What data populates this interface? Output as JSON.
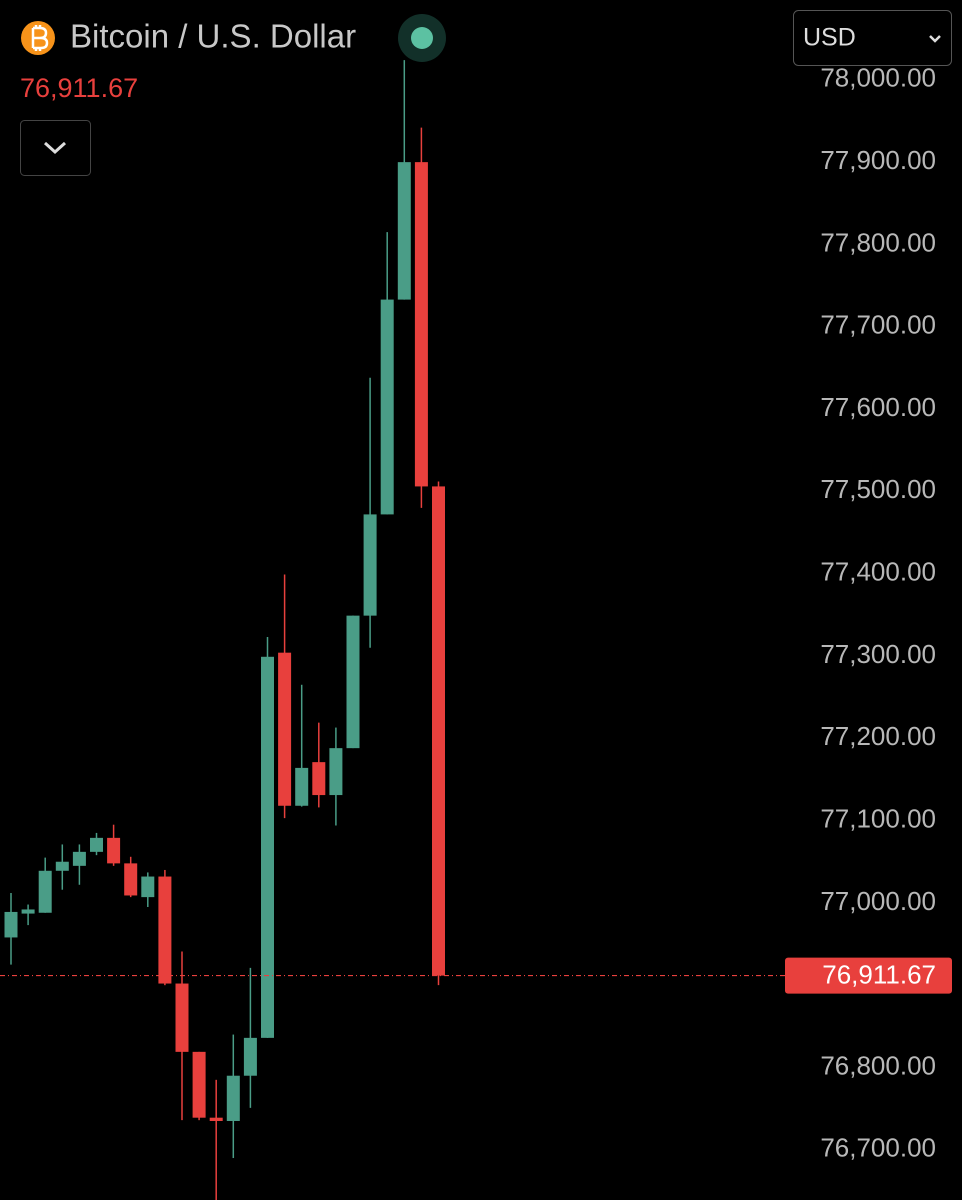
{
  "chart_data": {
    "type": "candlestick",
    "title": "Bitcoin / U.S. Dollar",
    "currency": "USD",
    "last_price": {
      "value": 76911.67,
      "label": "76,911.67"
    },
    "categories": [
      null,
      null,
      null,
      null,
      null,
      null,
      null,
      null,
      null,
      null,
      null,
      null,
      null,
      null,
      null,
      null,
      null,
      null,
      null,
      null,
      null,
      null,
      null,
      null,
      null,
      null
    ],
    "open": [
      76958,
      76987,
      76988,
      77039,
      77045,
      77062,
      77079,
      77048,
      77007,
      77032,
      76902,
      76819,
      76739,
      76735,
      76790,
      76836,
      77304,
      77118,
      77171,
      77131,
      77188,
      77349,
      77472,
      77733,
      77900,
      77506
    ],
    "high": [
      77012,
      76998,
      77055,
      77071,
      77071,
      77085,
      77095,
      77056,
      77037,
      77040,
      76941,
      76819,
      76785,
      76840,
      76921,
      77323,
      77399,
      77265,
      77219,
      77213,
      77349,
      77638,
      77815,
      78024,
      77942,
      77512
    ],
    "low": [
      76925,
      76973,
      76988,
      77016,
      77022,
      77058,
      77045,
      77007,
      76995,
      76900,
      76736,
      76736,
      76639,
      76690,
      76751,
      76836,
      77103,
      77117,
      77116,
      77094,
      77188,
      77310,
      77472,
      77733,
      77480,
      76900
    ],
    "close": [
      76989,
      76992,
      77039,
      77050,
      77062,
      77079,
      77048,
      77009,
      77032,
      76902,
      76819,
      76739,
      76735,
      76790,
      76836,
      77299,
      77118,
      77164,
      77131,
      77188,
      77349,
      77472,
      77733,
      77900,
      77506,
      76911.67
    ],
    "up_color": "#4a9d87",
    "down_color": "#e8403d",
    "ylim": [
      76639,
      78097
    ],
    "yticks": [
      {
        "value": 76700,
        "label": "76,700.00"
      },
      {
        "value": 76800,
        "label": "76,800.00"
      },
      {
        "value": 77000,
        "label": "77,000.00"
      },
      {
        "value": 77100,
        "label": "77,100.00"
      },
      {
        "value": 77200,
        "label": "77,200.00"
      },
      {
        "value": 77300,
        "label": "77,300.00"
      },
      {
        "value": 77400,
        "label": "77,400.00"
      },
      {
        "value": 77500,
        "label": "77,500.00"
      },
      {
        "value": 77600,
        "label": "77,600.00"
      },
      {
        "value": 77700,
        "label": "77,700.00"
      },
      {
        "value": 77800,
        "label": "77,800.00"
      },
      {
        "value": 77900,
        "label": "77,900.00"
      },
      {
        "value": 78000,
        "label": "78,000.00"
      }
    ]
  }
}
